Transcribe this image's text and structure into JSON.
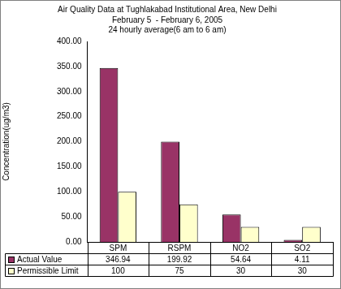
{
  "chart_data": {
    "type": "bar",
    "title": "Air Quality Data at Tughlakabad Institutional Area, New Delhi",
    "subtitle": [
      "February 5  - February 6, 2005",
      "24 hourly average(6 am to 6 am)"
    ],
    "y_label": "Concentration(ug/m3)",
    "categories": [
      "SPM",
      "RSPM",
      "NO2",
      "SO2"
    ],
    "series": [
      {
        "name": "Actual Value",
        "color": "#993366",
        "values": [
          346.94,
          199.92,
          54.64,
          4.11
        ]
      },
      {
        "name": "Permissible Limit",
        "color": "#ffffcc",
        "values": [
          100,
          75,
          30,
          30
        ]
      }
    ],
    "ylim": [
      0,
      400
    ],
    "yticks": [
      {
        "value": 0,
        "label": "0.00"
      },
      {
        "value": 50,
        "label": "50.00"
      },
      {
        "value": 100,
        "label": "100.00"
      },
      {
        "value": 150,
        "label": "150.00"
      },
      {
        "value": 200,
        "label": "200.00"
      },
      {
        "value": 250,
        "label": "250.00"
      },
      {
        "value": 300,
        "label": "300.00"
      },
      {
        "value": 350,
        "label": "350.00"
      },
      {
        "value": 400,
        "label": "400.00"
      }
    ],
    "grid": false,
    "legend": "bottom"
  }
}
